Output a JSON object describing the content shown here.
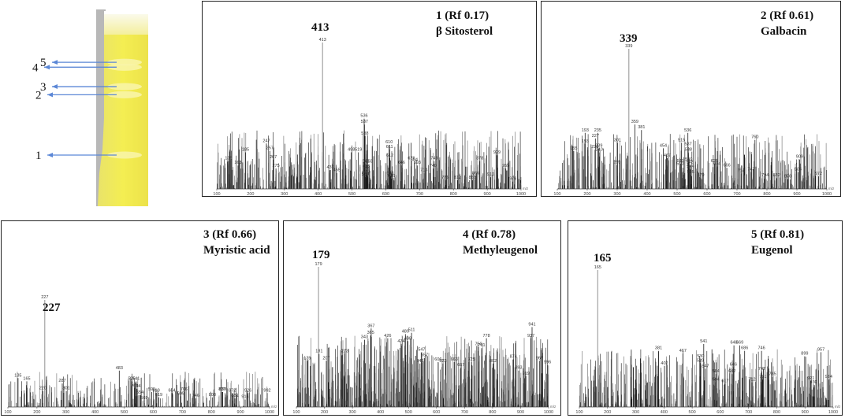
{
  "tlc": {
    "spots": [
      {
        "label": "5",
        "rf": 0.81
      },
      {
        "label": "4",
        "rf": 0.78
      },
      {
        "label": "3",
        "rf": 0.66
      },
      {
        "label": "2",
        "rf": 0.61
      },
      {
        "label": "1",
        "rf": 0.17
      }
    ]
  },
  "chart_data": [
    {
      "type": "bar",
      "title_line1": "1 (Rf 0.17)",
      "title_line2": "β Sitosterol",
      "main_peak": "413",
      "xlim": [
        100,
        1000
      ],
      "x_ticks": [
        "100",
        "200",
        "300",
        "400",
        "500",
        "600",
        "700",
        "800",
        "900",
        "1000"
      ],
      "x_unit": "m/z",
      "peaks": [
        {
          "x": 413,
          "y": 100,
          "label": "413"
        },
        {
          "x": 536,
          "y": 48,
          "label": "536"
        },
        {
          "x": 537,
          "y": 44,
          "label": "537"
        },
        {
          "x": 538,
          "y": 36,
          "label": "538"
        },
        {
          "x": 610,
          "y": 30,
          "label": "610"
        },
        {
          "x": 611,
          "y": 27,
          "label": "611"
        },
        {
          "x": 247,
          "y": 31,
          "label": "247"
        },
        {
          "x": 257,
          "y": 26,
          "label": "257"
        },
        {
          "x": 185,
          "y": 25,
          "label": "185"
        },
        {
          "x": 135,
          "y": 19,
          "label": "135"
        },
        {
          "x": 163,
          "y": 16,
          "label": "163"
        },
        {
          "x": 267,
          "y": 20,
          "label": "267"
        },
        {
          "x": 275,
          "y": 14,
          "label": "275"
        },
        {
          "x": 498,
          "y": 25,
          "label": "498"
        },
        {
          "x": 519,
          "y": 25,
          "label": "519"
        },
        {
          "x": 436,
          "y": 13,
          "label": "436"
        },
        {
          "x": 455,
          "y": 11,
          "label": "455"
        },
        {
          "x": 541,
          "y": 17,
          "label": "541"
        },
        {
          "x": 542,
          "y": 13,
          "label": "542"
        },
        {
          "x": 543,
          "y": 10,
          "label": "543"
        },
        {
          "x": 539,
          "y": 8,
          "label": "539"
        },
        {
          "x": 550,
          "y": 17,
          "label": "550"
        },
        {
          "x": 612,
          "y": 21,
          "label": "612"
        },
        {
          "x": 613,
          "y": 9,
          "label": "613"
        },
        {
          "x": 616,
          "y": 7,
          "label": "616"
        },
        {
          "x": 646,
          "y": 16,
          "label": "646"
        },
        {
          "x": 676,
          "y": 19,
          "label": "676"
        },
        {
          "x": 684,
          "y": 18,
          "label": "684"
        },
        {
          "x": 693,
          "y": 16,
          "label": "693"
        },
        {
          "x": 713,
          "y": 11,
          "label": "713"
        },
        {
          "x": 743,
          "y": 19,
          "label": "743"
        },
        {
          "x": 740,
          "y": 14,
          "label": "740"
        },
        {
          "x": 776,
          "y": 6,
          "label": "776"
        },
        {
          "x": 812,
          "y": 6,
          "label": "812"
        },
        {
          "x": 866,
          "y": 9,
          "label": "866"
        },
        {
          "x": 856,
          "y": 6,
          "label": "856"
        },
        {
          "x": 878,
          "y": 19,
          "label": "878"
        },
        {
          "x": 929,
          "y": 23,
          "label": "929"
        },
        {
          "x": 910,
          "y": 8,
          "label": "910"
        },
        {
          "x": 955,
          "y": 14,
          "label": "955"
        },
        {
          "x": 976,
          "y": 5,
          "label": "976"
        }
      ]
    },
    {
      "type": "bar",
      "title_line1": "2 (Rf 0.61)",
      "title_line2": "Galbacin",
      "main_peak": "339",
      "xlim": [
        100,
        1000
      ],
      "x_ticks": [
        "100",
        "200",
        "300",
        "400",
        "500",
        "600",
        "700",
        "800",
        "900",
        "1000"
      ],
      "x_unit": "m/z",
      "peaks": [
        {
          "x": 339,
          "y": 100,
          "label": "339"
        },
        {
          "x": 359,
          "y": 46,
          "label": "359"
        },
        {
          "x": 381,
          "y": 42,
          "label": "381"
        },
        {
          "x": 193,
          "y": 40,
          "label": "193"
        },
        {
          "x": 235,
          "y": 40,
          "label": "235"
        },
        {
          "x": 227,
          "y": 36,
          "label": "227"
        },
        {
          "x": 193,
          "y": 32,
          "label": "193"
        },
        {
          "x": 226,
          "y": 28,
          "label": "226"
        },
        {
          "x": 155,
          "y": 27,
          "label": "155"
        },
        {
          "x": 239,
          "y": 29,
          "label": "239"
        },
        {
          "x": 240,
          "y": 26,
          "label": "240"
        },
        {
          "x": 301,
          "y": 33,
          "label": "301"
        },
        {
          "x": 299,
          "y": 17,
          "label": "299"
        },
        {
          "x": 536,
          "y": 40,
          "label": "536"
        },
        {
          "x": 515,
          "y": 33,
          "label": "515"
        },
        {
          "x": 537,
          "y": 30,
          "label": "537"
        },
        {
          "x": 454,
          "y": 29,
          "label": "454"
        },
        {
          "x": 538,
          "y": 26,
          "label": "538"
        },
        {
          "x": 467,
          "y": 22,
          "label": "467"
        },
        {
          "x": 539,
          "y": 19,
          "label": "539"
        },
        {
          "x": 542,
          "y": 17,
          "label": "542"
        },
        {
          "x": 511,
          "y": 18,
          "label": "511"
        },
        {
          "x": 510,
          "y": 16,
          "label": "510"
        },
        {
          "x": 544,
          "y": 14,
          "label": "544"
        },
        {
          "x": 545,
          "y": 10,
          "label": "545"
        },
        {
          "x": 579,
          "y": 8,
          "label": "579"
        },
        {
          "x": 625,
          "y": 18,
          "label": "625"
        },
        {
          "x": 634,
          "y": 16,
          "label": "634"
        },
        {
          "x": 666,
          "y": 15,
          "label": "666"
        },
        {
          "x": 714,
          "y": 11,
          "label": "714"
        },
        {
          "x": 760,
          "y": 35,
          "label": "760"
        },
        {
          "x": 747,
          "y": 12,
          "label": "747"
        },
        {
          "x": 794,
          "y": 8,
          "label": "794"
        },
        {
          "x": 832,
          "y": 8,
          "label": "832"
        },
        {
          "x": 870,
          "y": 7,
          "label": "870"
        },
        {
          "x": 909,
          "y": 21,
          "label": "909"
        },
        {
          "x": 904,
          "y": 12,
          "label": "904"
        },
        {
          "x": 972,
          "y": 9,
          "label": "972"
        }
      ]
    },
    {
      "type": "bar",
      "title_line1": "3 (Rf 0.66)",
      "title_line2": "Myristic acid",
      "main_peak": "227",
      "xlim": [
        100,
        1000
      ],
      "x_ticks": [
        "100",
        "200",
        "300",
        "400",
        "500",
        "600",
        "700",
        "800",
        "900",
        "1000"
      ],
      "x_unit": "m/z",
      "peaks": [
        {
          "x": 227,
          "y": 100,
          "label": "227"
        },
        {
          "x": 135,
          "y": 27,
          "label": "135"
        },
        {
          "x": 165,
          "y": 24,
          "label": "165"
        },
        {
          "x": 220,
          "y": 15,
          "label": "220"
        },
        {
          "x": 287,
          "y": 22,
          "label": "287"
        },
        {
          "x": 301,
          "y": 15,
          "label": "301"
        },
        {
          "x": 483,
          "y": 34,
          "label": "483"
        },
        {
          "x": 526,
          "y": 24,
          "label": "526"
        },
        {
          "x": 536,
          "y": 18,
          "label": "536"
        },
        {
          "x": 541,
          "y": 24,
          "label": "541"
        },
        {
          "x": 544,
          "y": 17,
          "label": "544"
        },
        {
          "x": 595,
          "y": 14,
          "label": "595"
        },
        {
          "x": 554,
          "y": 11,
          "label": "554"
        },
        {
          "x": 569,
          "y": 6,
          "label": "569"
        },
        {
          "x": 610,
          "y": 13,
          "label": "610"
        },
        {
          "x": 619,
          "y": 9,
          "label": "619"
        },
        {
          "x": 664,
          "y": 13,
          "label": "664"
        },
        {
          "x": 706,
          "y": 14,
          "label": "706"
        },
        {
          "x": 695,
          "y": 10,
          "label": "695"
        },
        {
          "x": 746,
          "y": 8,
          "label": "746"
        },
        {
          "x": 803,
          "y": 9,
          "label": "803"
        },
        {
          "x": 837,
          "y": 14,
          "label": "837"
        },
        {
          "x": 839,
          "y": 14,
          "label": "839"
        },
        {
          "x": 881,
          "y": 8,
          "label": "881"
        },
        {
          "x": 872,
          "y": 13,
          "label": "872"
        },
        {
          "x": 916,
          "y": 7,
          "label": "916"
        },
        {
          "x": 926,
          "y": 13,
          "label": "926"
        },
        {
          "x": 992,
          "y": 13,
          "label": "992"
        }
      ]
    },
    {
      "type": "bar",
      "title_line1": "4 (Rf 0.78)",
      "title_line2": "Methyleugenol",
      "main_peak": "179",
      "xlim": [
        100,
        1000
      ],
      "x_ticks": [
        "100",
        "200",
        "300",
        "400",
        "500",
        "600",
        "700",
        "800",
        "900",
        "1000"
      ],
      "x_unit": "m/z",
      "peaks": [
        {
          "x": 179,
          "y": 100,
          "label": "179"
        },
        {
          "x": 367,
          "y": 56,
          "label": "367"
        },
        {
          "x": 365,
          "y": 51,
          "label": "365"
        },
        {
          "x": 343,
          "y": 48,
          "label": "343"
        },
        {
          "x": 426,
          "y": 49,
          "label": "426"
        },
        {
          "x": 489,
          "y": 52,
          "label": "489"
        },
        {
          "x": 511,
          "y": 53,
          "label": "511"
        },
        {
          "x": 474,
          "y": 45,
          "label": "474"
        },
        {
          "x": 498,
          "y": 47,
          "label": "498"
        },
        {
          "x": 547,
          "y": 39,
          "label": "547"
        },
        {
          "x": 557,
          "y": 35,
          "label": "557"
        },
        {
          "x": 541,
          "y": 31,
          "label": "541"
        },
        {
          "x": 273,
          "y": 38,
          "label": "273"
        },
        {
          "x": 181,
          "y": 38,
          "label": "181"
        },
        {
          "x": 207,
          "y": 33,
          "label": "207"
        },
        {
          "x": 139,
          "y": 33,
          "label": "139"
        },
        {
          "x": 606,
          "y": 32,
          "label": "606"
        },
        {
          "x": 623,
          "y": 31,
          "label": "623"
        },
        {
          "x": 663,
          "y": 32,
          "label": "663"
        },
        {
          "x": 687,
          "y": 28,
          "label": "687"
        },
        {
          "x": 725,
          "y": 32,
          "label": "725"
        },
        {
          "x": 750,
          "y": 43,
          "label": "750"
        },
        {
          "x": 761,
          "y": 42,
          "label": "761"
        },
        {
          "x": 778,
          "y": 49,
          "label": "778"
        },
        {
          "x": 802,
          "y": 31,
          "label": "802"
        },
        {
          "x": 874,
          "y": 34,
          "label": "874"
        },
        {
          "x": 893,
          "y": 26,
          "label": "893"
        },
        {
          "x": 919,
          "y": 22,
          "label": "919"
        },
        {
          "x": 941,
          "y": 57,
          "label": "941"
        },
        {
          "x": 937,
          "y": 49,
          "label": "937"
        },
        {
          "x": 967,
          "y": 33,
          "label": "967"
        },
        {
          "x": 996,
          "y": 30,
          "label": "996"
        }
      ]
    },
    {
      "type": "bar",
      "title_line1": "5 (Rf 0.81)",
      "title_line2": "Eugenol",
      "main_peak": "165",
      "xlim": [
        100,
        1000
      ],
      "x_ticks": [
        "100",
        "200",
        "300",
        "400",
        "500",
        "600",
        "700",
        "800",
        "900",
        "1000"
      ],
      "x_unit": "m/z",
      "peaks": [
        {
          "x": 165,
          "y": 100,
          "label": "165"
        },
        {
          "x": 541,
          "y": 46,
          "label": "541"
        },
        {
          "x": 648,
          "y": 45,
          "label": "648"
        },
        {
          "x": 669,
          "y": 45,
          "label": "669"
        },
        {
          "x": 686,
          "y": 41,
          "label": "686"
        },
        {
          "x": 746,
          "y": 41,
          "label": "746"
        },
        {
          "x": 381,
          "y": 41,
          "label": "381"
        },
        {
          "x": 467,
          "y": 39,
          "label": "467"
        },
        {
          "x": 530,
          "y": 35,
          "label": "530"
        },
        {
          "x": 529,
          "y": 32,
          "label": "529"
        },
        {
          "x": 402,
          "y": 30,
          "label": "402"
        },
        {
          "x": 547,
          "y": 28,
          "label": "547"
        },
        {
          "x": 646,
          "y": 29,
          "label": "646"
        },
        {
          "x": 642,
          "y": 24,
          "label": "642"
        },
        {
          "x": 584,
          "y": 24,
          "label": "584"
        },
        {
          "x": 584,
          "y": 18,
          "label": "584"
        },
        {
          "x": 617,
          "y": 17,
          "label": "617"
        },
        {
          "x": 712,
          "y": 18,
          "label": "712"
        },
        {
          "x": 747,
          "y": 26,
          "label": "747"
        },
        {
          "x": 751,
          "y": 20,
          "label": "751"
        },
        {
          "x": 785,
          "y": 22,
          "label": "785"
        },
        {
          "x": 899,
          "y": 37,
          "label": "899"
        },
        {
          "x": 957,
          "y": 40,
          "label": "957"
        },
        {
          "x": 921,
          "y": 19,
          "label": "921"
        },
        {
          "x": 930,
          "y": 16,
          "label": "930"
        },
        {
          "x": 984,
          "y": 20,
          "label": "984"
        }
      ]
    }
  ],
  "colors": {
    "frame": "#222222",
    "bar_dark": "#1a1a1a",
    "bar_mid": "#6b6b6b",
    "peak_major": "#9a9a9a",
    "label_small": "#333333",
    "plate_yellow": "#f2ea50",
    "plate_light": "#f8f4a6",
    "arrow": "#5b87d6"
  }
}
